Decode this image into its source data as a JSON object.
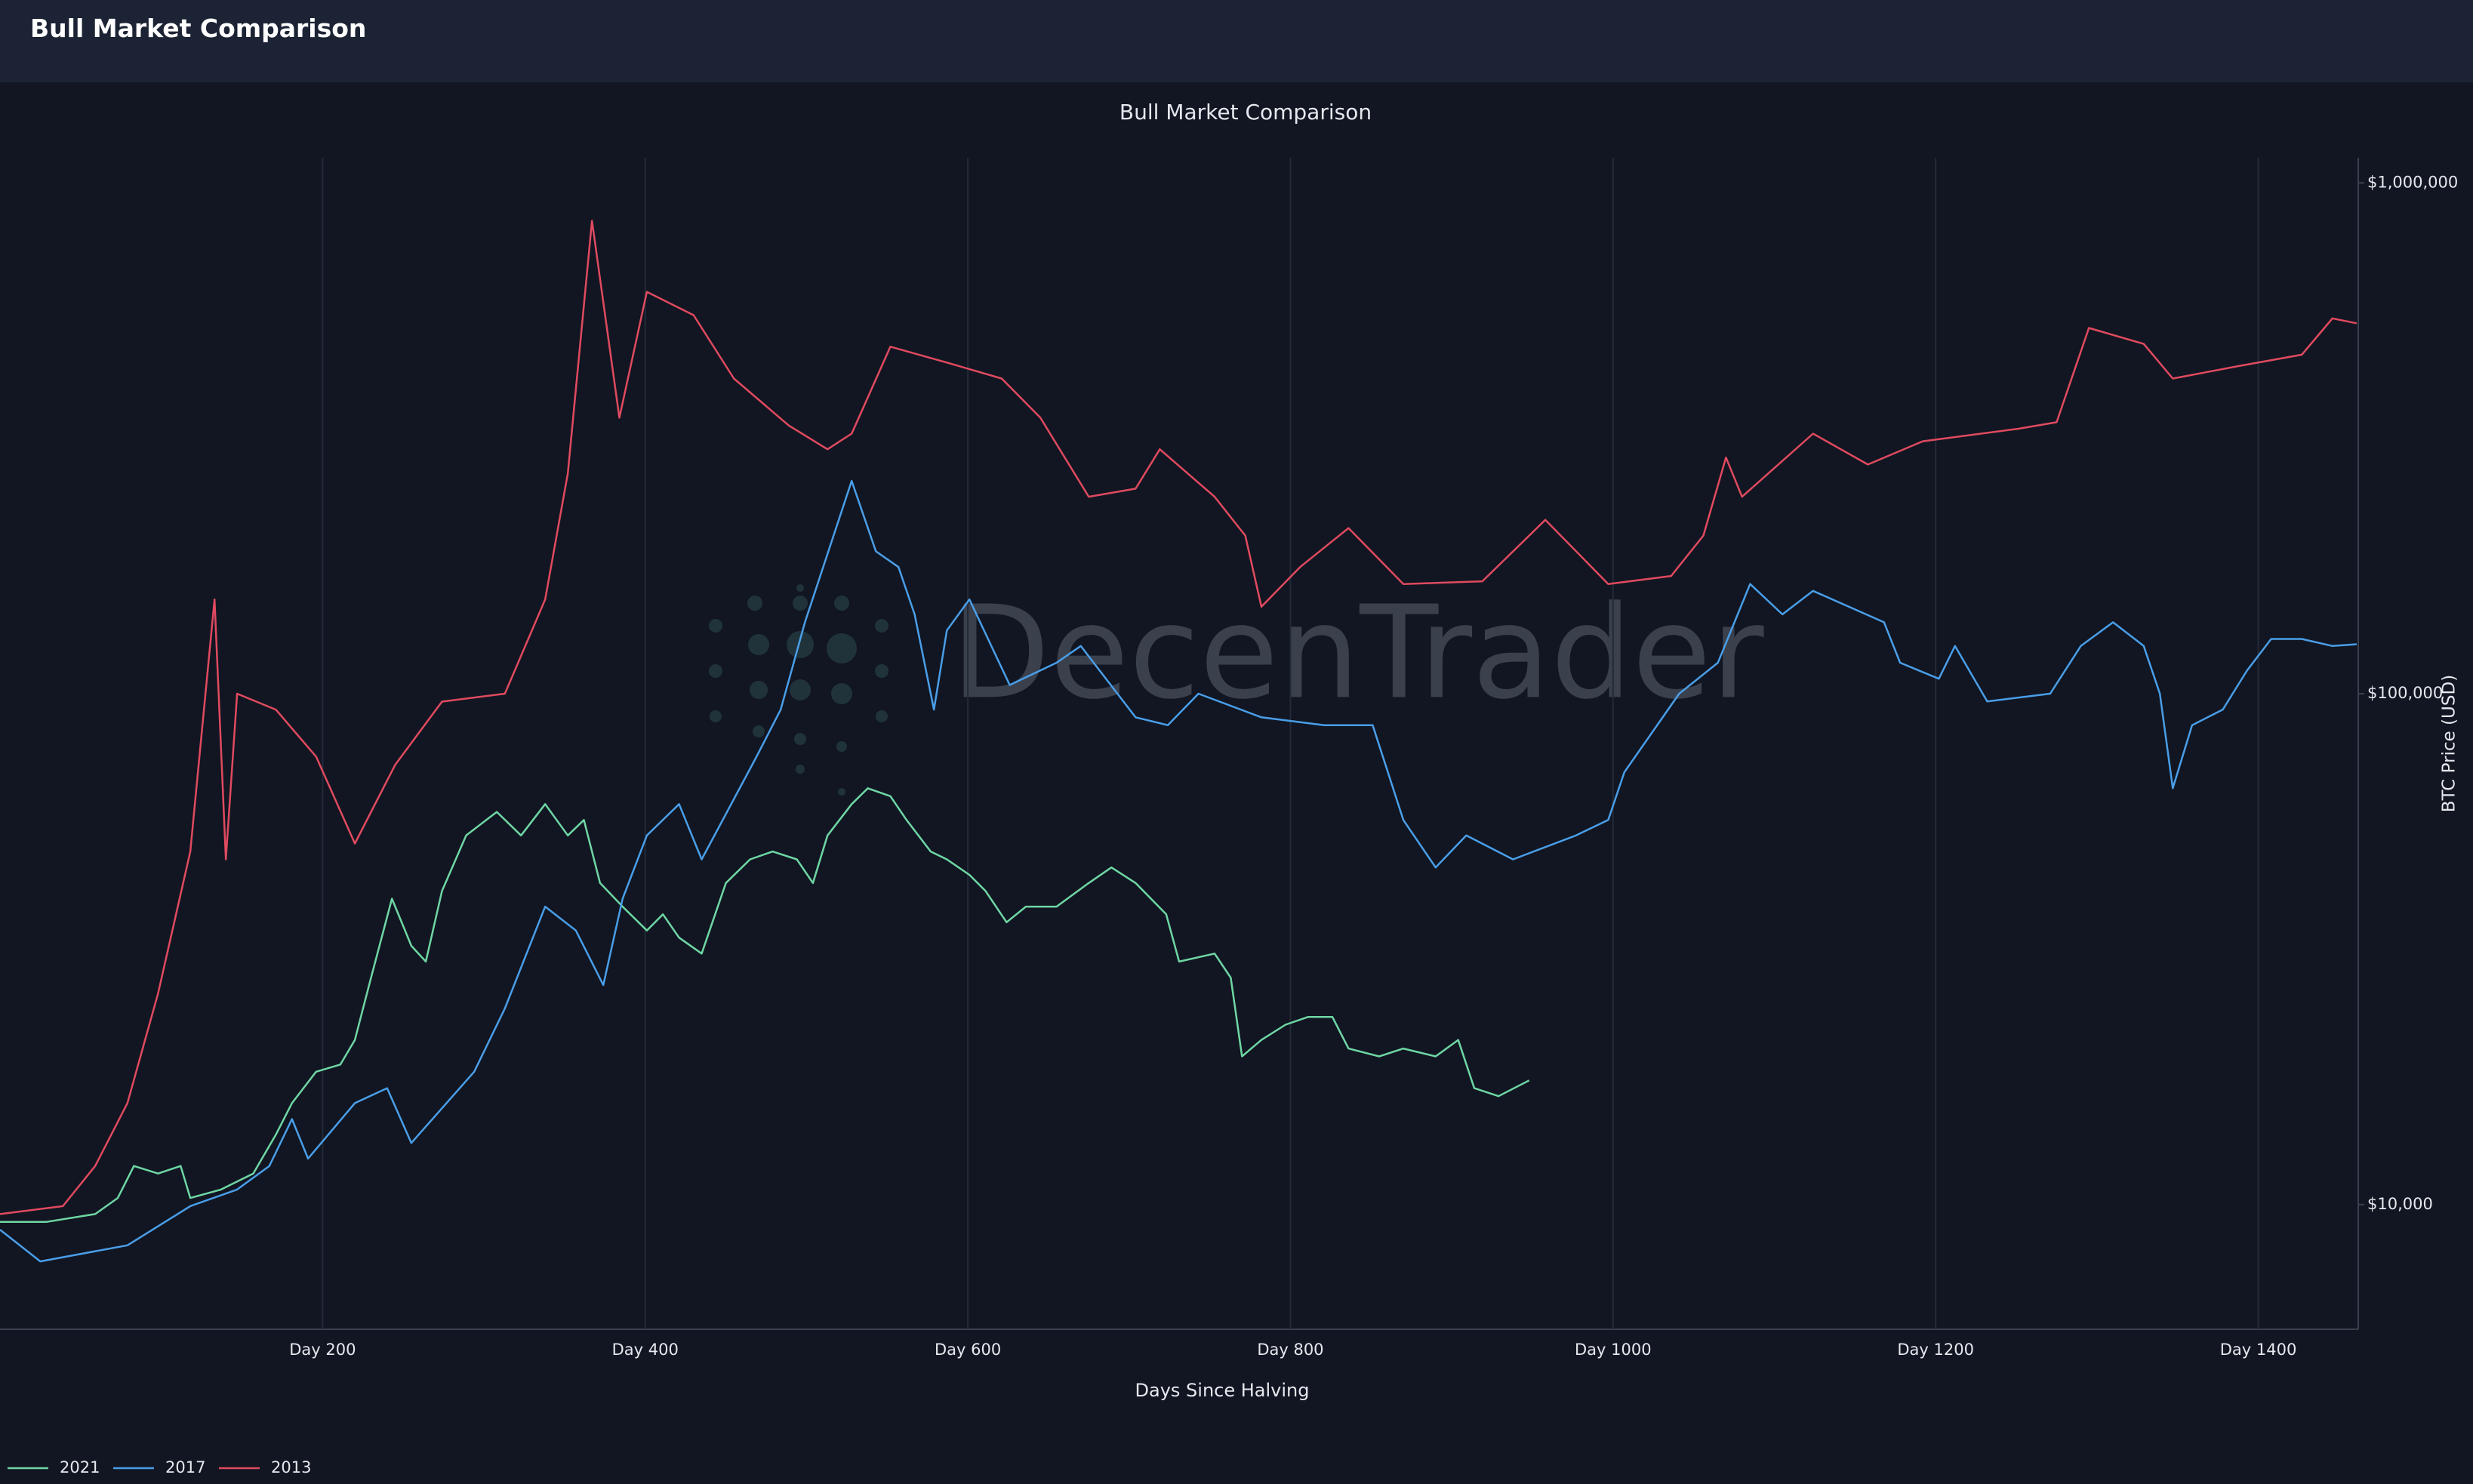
{
  "header": {
    "title": "Bull Market Comparison"
  },
  "chart_data": {
    "type": "line",
    "title": "Bull Market Comparison",
    "x_label": "Days Since Halving",
    "y_label": "BTC Price (USD)",
    "watermark": "DecenTrader",
    "y_scale": "log",
    "y_axis_side": "right",
    "xgrid": true,
    "legend": "bottom-left",
    "xlim": [
      0,
      1462
    ],
    "ylim": [
      5700,
      1120000
    ],
    "xticks": [
      {
        "value": 200,
        "label": "Day 200"
      },
      {
        "value": 400,
        "label": "Day 400"
      },
      {
        "value": 600,
        "label": "Day 600"
      },
      {
        "value": 800,
        "label": "Day 800"
      },
      {
        "value": 1000,
        "label": "Day 1000"
      },
      {
        "value": 1200,
        "label": "Day 1200"
      },
      {
        "value": 1400,
        "label": "Day 1400"
      }
    ],
    "yticks": [
      {
        "value": 10000,
        "label": "$10,000"
      },
      {
        "value": 100000,
        "label": "$100,000"
      },
      {
        "value": 1000000,
        "label": "$1,000,000"
      }
    ],
    "series": [
      {
        "name": "2021",
        "color": "#6fd6a4",
        "x": [
          0,
          29,
          59,
          73,
          83,
          98,
          112,
          118,
          137,
          157,
          171,
          181,
          196,
          211,
          220,
          230,
          243,
          255,
          264,
          274,
          289,
          308,
          323,
          338,
          352,
          362,
          372,
          386,
          401,
          411,
          421,
          435,
          450,
          465,
          479,
          494,
          504,
          513,
          528,
          538,
          552,
          562,
          577,
          587,
          601,
          611,
          624,
          636,
          655,
          675,
          689,
          704,
          723,
          731,
          753,
          763,
          770,
          782,
          797,
          811,
          826,
          836,
          855,
          870,
          890,
          904,
          914,
          929,
          948
        ],
        "values": [
          9250,
          9250,
          9580,
          10300,
          11900,
          11500,
          11900,
          10300,
          10700,
          11500,
          13700,
          15800,
          18200,
          18800,
          21000,
          27800,
          39700,
          32100,
          29900,
          41100,
          52800,
          58700,
          52800,
          60800,
          52800,
          56600,
          42600,
          38300,
          34400,
          37000,
          33300,
          31000,
          42600,
          47400,
          49100,
          47400,
          42600,
          52800,
          60800,
          65300,
          63000,
          56600,
          49100,
          47400,
          44200,
          41100,
          35700,
          38300,
          38300,
          42600,
          45700,
          42600,
          37000,
          29900,
          31000,
          27800,
          19500,
          21000,
          22500,
          23300,
          23300,
          20200,
          19500,
          20200,
          19500,
          21000,
          16900,
          16300,
          17500
        ]
      },
      {
        "name": "2017",
        "color": "#4a9ee8",
        "x": [
          0,
          25,
          79,
          118,
          147,
          167,
          181,
          191,
          220,
          240,
          255,
          294,
          313,
          338,
          357,
          374,
          386,
          401,
          421,
          435,
          469,
          484,
          499,
          528,
          543,
          557,
          567,
          579,
          587,
          601,
          626,
          655,
          670,
          704,
          724,
          743,
          782,
          821,
          851,
          870,
          890,
          909,
          938,
          977,
          997,
          1007,
          1041,
          1065,
          1085,
          1105,
          1124,
          1168,
          1178,
          1202,
          1212,
          1232,
          1271,
          1290,
          1310,
          1329,
          1339,
          1347,
          1359,
          1378,
          1393,
          1408,
          1427,
          1446,
          1461
        ],
        "values": [
          8930,
          7740,
          8320,
          9930,
          10700,
          11900,
          14700,
          12300,
          15800,
          16900,
          13200,
          18200,
          24200,
          38300,
          34400,
          26900,
          39700,
          52800,
          60800,
          47400,
          75300,
          93100,
          138000,
          261000,
          190000,
          177000,
          143000,
          93100,
          133000,
          153000,
          104000,
          115000,
          124000,
          89900,
          86800,
          100000,
          89900,
          86800,
          86800,
          56600,
          45700,
          52800,
          47400,
          52800,
          56600,
          70200,
          100000,
          115000,
          164000,
          143000,
          159000,
          138000,
          115000,
          107000,
          124000,
          96600,
          100000,
          124000,
          138000,
          124000,
          100000,
          65300,
          86800,
          93100,
          111000,
          128000,
          128000,
          124000,
          125000
        ]
      },
      {
        "name": "2013",
        "color": "#e04a5f",
        "x": [
          0,
          39,
          59,
          79,
          98,
          118,
          133,
          140,
          147,
          171,
          196,
          220,
          245,
          274,
          313,
          338,
          352,
          367,
          384,
          401,
          430,
          455,
          489,
          513,
          528,
          552,
          587,
          621,
          645,
          675,
          704,
          719,
          753,
          772,
          782,
          806,
          836,
          870,
          919,
          958,
          997,
          1036,
          1056,
          1070,
          1080,
          1124,
          1158,
          1192,
          1251,
          1275,
          1295,
          1329,
          1347,
          1388,
          1427,
          1446,
          1461
        ],
        "values": [
          9580,
          9930,
          11900,
          15800,
          25900,
          49100,
          153000,
          47400,
          100000,
          93100,
          75300,
          50900,
          72600,
          96500,
          100000,
          153000,
          270000,
          843000,
          347000,
          612000,
          551000,
          414000,
          335000,
          301000,
          323000,
          478000,
          445000,
          414000,
          347000,
          243000,
          252000,
          301000,
          243000,
          204000,
          148000,
          177000,
          211000,
          164000,
          166000,
          219000,
          164000,
          170000,
          204000,
          290000,
          243000,
          323000,
          281000,
          312000,
          330000,
          340000,
          520000,
          484000,
          414000,
          438000,
          461000,
          543000,
          531000
        ]
      }
    ]
  }
}
